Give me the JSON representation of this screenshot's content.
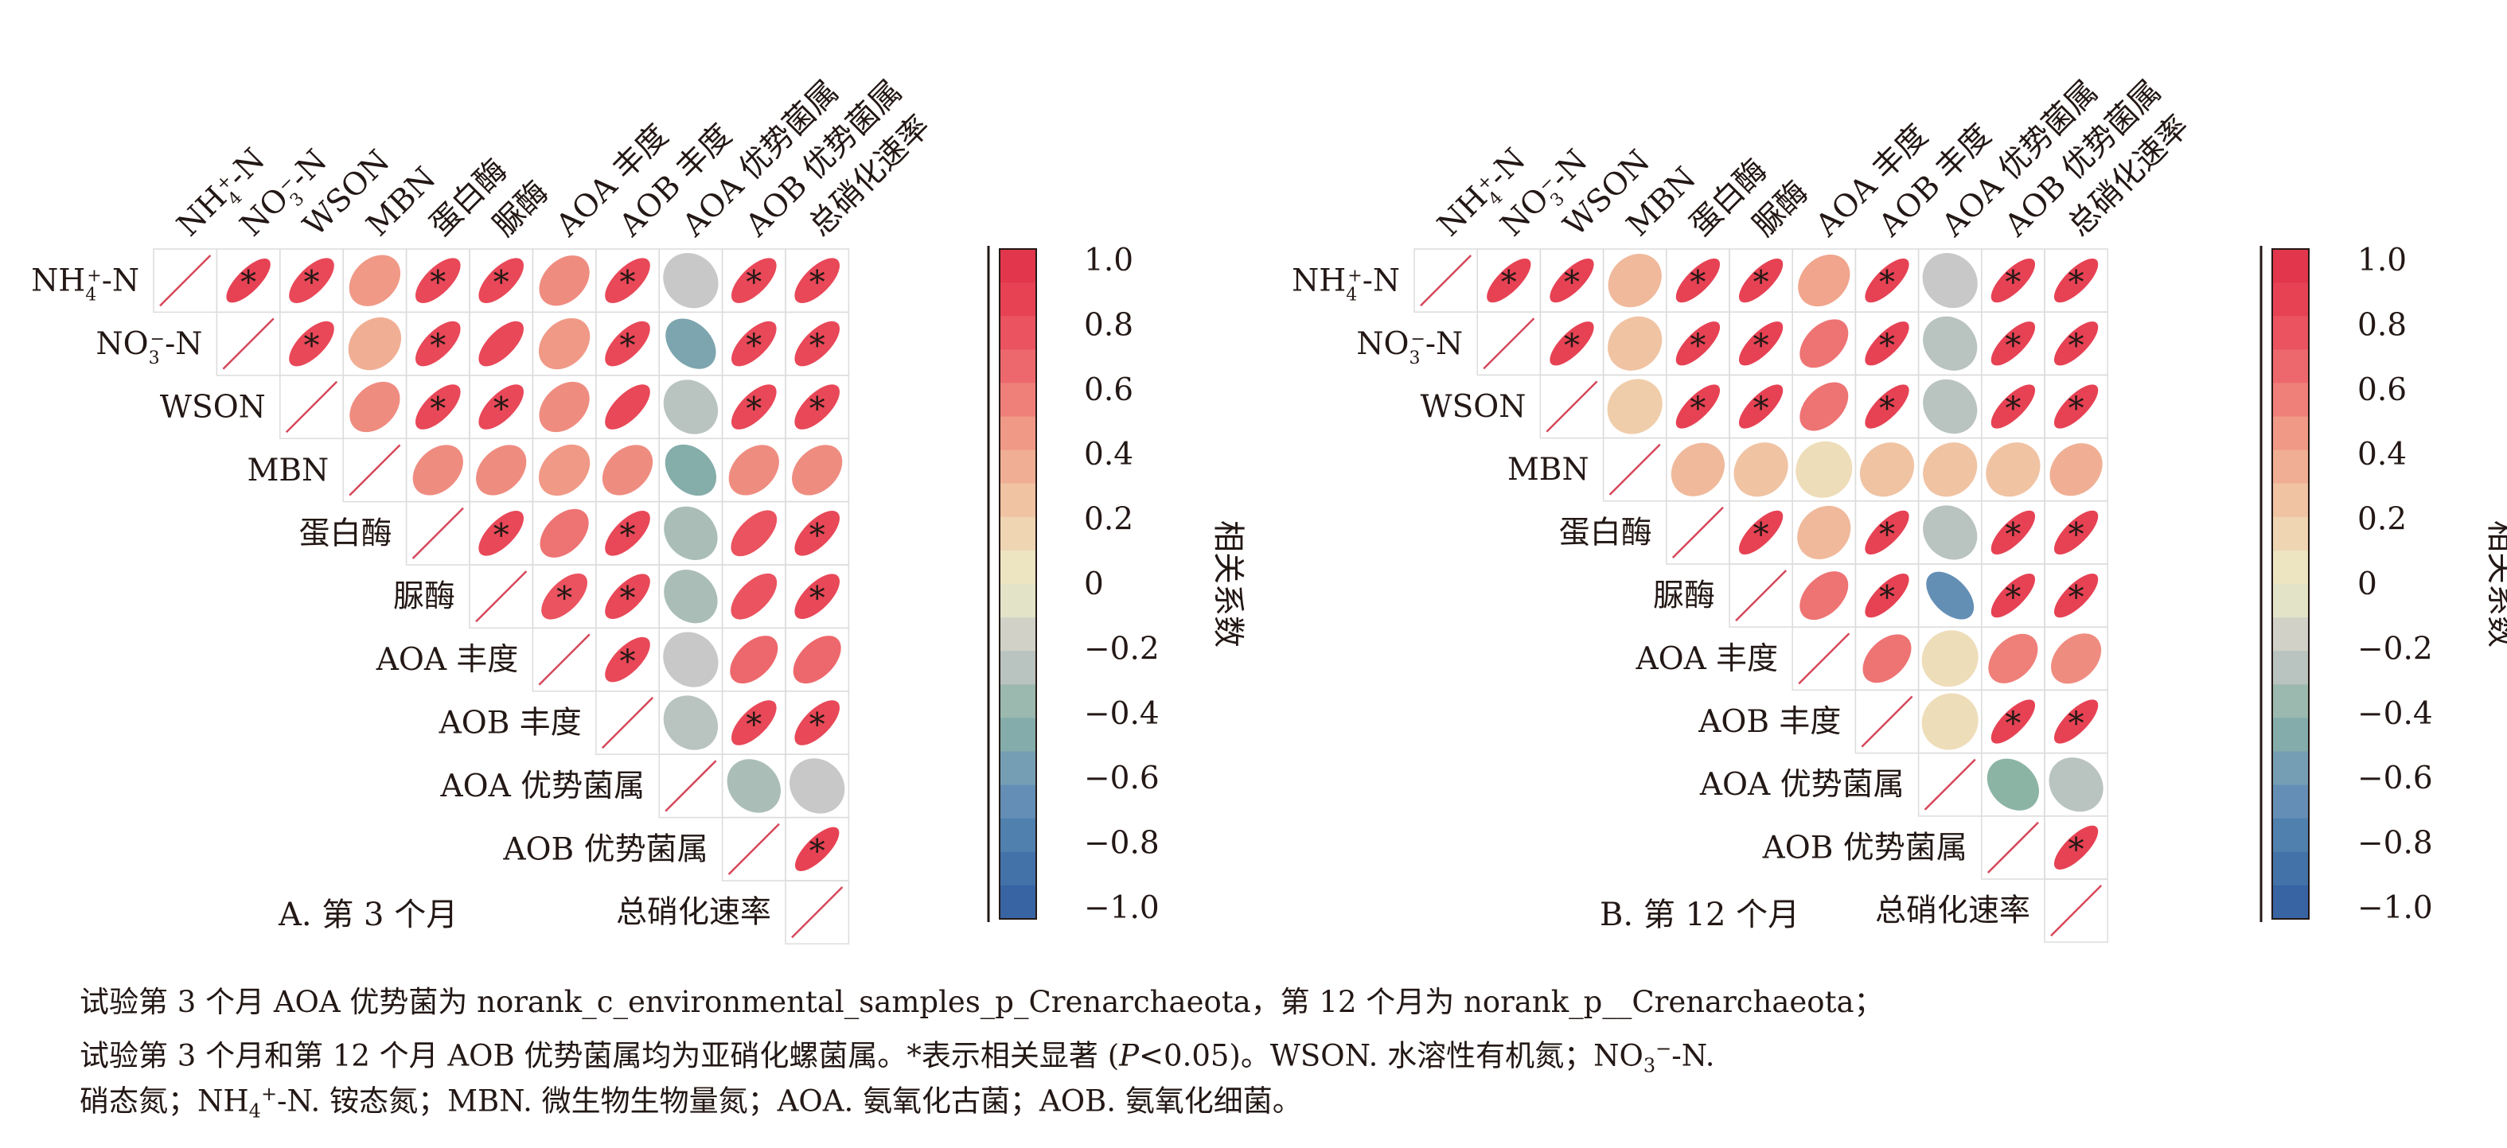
{
  "chart_data": [
    {
      "type": "heatmap",
      "panel_label": "A. 第 3 个月",
      "variables": [
        "NH4+-N",
        "NO3−-N",
        "WSON",
        "MBN",
        "蛋白酶",
        "脲酶",
        "AOA 丰度",
        "AOB 丰度",
        "AOA 优势菌属",
        "AOB 优势菌属",
        "总硝化速率"
      ],
      "matrix": [
        [
          1.0,
          0.85,
          0.8,
          0.45,
          0.8,
          0.8,
          0.5,
          0.8,
          -0.2,
          0.8,
          0.8
        ],
        [
          0.85,
          1.0,
          0.8,
          0.35,
          0.8,
          0.8,
          0.45,
          0.8,
          -0.5,
          0.8,
          0.8
        ],
        [
          0.8,
          0.8,
          1.0,
          0.5,
          0.8,
          0.8,
          0.5,
          0.8,
          -0.25,
          0.8,
          0.8
        ],
        [
          0.45,
          0.35,
          0.5,
          1.0,
          0.5,
          0.5,
          0.45,
          0.5,
          -0.45,
          0.5,
          0.5
        ],
        [
          0.8,
          0.8,
          0.8,
          0.5,
          1.0,
          0.8,
          0.6,
          0.8,
          -0.3,
          0.75,
          0.8
        ],
        [
          0.8,
          0.8,
          0.8,
          0.5,
          0.8,
          1.0,
          0.75,
          0.8,
          -0.3,
          0.75,
          0.8
        ],
        [
          0.5,
          0.45,
          0.5,
          0.45,
          0.6,
          0.75,
          1.0,
          0.8,
          -0.2,
          0.65,
          0.65
        ],
        [
          0.8,
          0.8,
          0.8,
          0.5,
          0.8,
          0.8,
          0.8,
          1.0,
          -0.25,
          0.8,
          0.8
        ],
        [
          -0.2,
          -0.5,
          -0.25,
          -0.45,
          -0.3,
          -0.3,
          -0.2,
          -0.25,
          1.0,
          -0.3,
          -0.2
        ],
        [
          0.8,
          0.8,
          0.8,
          0.5,
          0.75,
          0.75,
          0.65,
          0.8,
          -0.3,
          1.0,
          0.85
        ],
        [
          0.8,
          0.8,
          0.8,
          0.5,
          0.8,
          0.8,
          0.65,
          0.8,
          -0.2,
          0.85,
          1.0
        ]
      ],
      "significant_pairs": [
        [
          0,
          1
        ],
        [
          0,
          2
        ],
        [
          0,
          4
        ],
        [
          0,
          5
        ],
        [
          0,
          7
        ],
        [
          0,
          9
        ],
        [
          0,
          10
        ],
        [
          1,
          2
        ],
        [
          1,
          4
        ],
        [
          1,
          7
        ],
        [
          1,
          9
        ],
        [
          1,
          10
        ],
        [
          2,
          4
        ],
        [
          2,
          5
        ],
        [
          2,
          9
        ],
        [
          2,
          10
        ],
        [
          4,
          5
        ],
        [
          4,
          7
        ],
        [
          4,
          10
        ],
        [
          5,
          6
        ],
        [
          5,
          7
        ],
        [
          5,
          10
        ],
        [
          6,
          7
        ],
        [
          7,
          9
        ],
        [
          7,
          10
        ],
        [
          9,
          10
        ]
      ],
      "colorbar": {
        "label": "相关系数",
        "ticks": [
          "1.0",
          "0.8",
          "0.6",
          "0.4",
          "0.2",
          "0",
          "−0.2",
          "−0.4",
          "−0.6",
          "−0.8",
          "−1.0"
        ],
        "range": [
          -1,
          1
        ]
      },
      "significance_mark": "*"
    },
    {
      "type": "heatmap",
      "panel_label": "B. 第 12 个月",
      "variables": [
        "NH4+-N",
        "NO3−-N",
        "WSON",
        "MBN",
        "蛋白酶",
        "脲酶",
        "AOA 丰度",
        "AOB 丰度",
        "AOA 优势菌属",
        "AOB 优势菌属",
        "总硝化速率"
      ],
      "matrix": [
        [
          1.0,
          0.85,
          0.85,
          0.3,
          0.85,
          0.85,
          0.4,
          0.85,
          -0.2,
          0.85,
          0.85
        ],
        [
          0.85,
          1.0,
          0.85,
          0.25,
          0.85,
          0.85,
          0.6,
          0.85,
          -0.25,
          0.85,
          0.85
        ],
        [
          0.85,
          0.85,
          1.0,
          0.2,
          0.85,
          0.85,
          0.6,
          0.85,
          -0.25,
          0.85,
          0.85
        ],
        [
          0.3,
          0.25,
          0.2,
          1.0,
          0.3,
          0.25,
          0.1,
          0.25,
          0.25,
          0.25,
          0.35
        ],
        [
          0.85,
          0.85,
          0.85,
          0.3,
          1.0,
          0.85,
          0.3,
          0.85,
          -0.25,
          0.85,
          0.85
        ],
        [
          0.85,
          0.85,
          0.85,
          0.25,
          0.85,
          1.0,
          0.6,
          0.85,
          -0.65,
          0.85,
          0.85
        ],
        [
          0.4,
          0.6,
          0.6,
          0.1,
          0.3,
          0.6,
          1.0,
          0.6,
          0.1,
          0.55,
          0.5
        ],
        [
          0.85,
          0.85,
          0.85,
          0.25,
          0.85,
          0.85,
          0.6,
          1.0,
          0.1,
          0.85,
          0.85
        ],
        [
          -0.2,
          -0.25,
          -0.25,
          0.25,
          -0.25,
          -0.65,
          0.1,
          0.1,
          1.0,
          -0.4,
          -0.25
        ],
        [
          0.85,
          0.85,
          0.85,
          0.25,
          0.85,
          0.85,
          0.55,
          0.85,
          -0.4,
          1.0,
          0.85
        ],
        [
          0.85,
          0.85,
          0.85,
          0.35,
          0.85,
          0.85,
          0.5,
          0.85,
          -0.25,
          0.85,
          1.0
        ]
      ],
      "significant_pairs": [
        [
          0,
          1
        ],
        [
          0,
          2
        ],
        [
          0,
          4
        ],
        [
          0,
          5
        ],
        [
          0,
          7
        ],
        [
          0,
          9
        ],
        [
          0,
          10
        ],
        [
          1,
          2
        ],
        [
          1,
          4
        ],
        [
          1,
          5
        ],
        [
          1,
          7
        ],
        [
          1,
          9
        ],
        [
          1,
          10
        ],
        [
          2,
          4
        ],
        [
          2,
          5
        ],
        [
          2,
          7
        ],
        [
          2,
          9
        ],
        [
          2,
          10
        ],
        [
          4,
          5
        ],
        [
          4,
          7
        ],
        [
          4,
          9
        ],
        [
          4,
          10
        ],
        [
          5,
          7
        ],
        [
          5,
          9
        ],
        [
          5,
          10
        ],
        [
          7,
          9
        ],
        [
          7,
          10
        ],
        [
          9,
          10
        ]
      ],
      "colorbar": {
        "label": "相关系数",
        "ticks": [
          "1.0",
          "0.8",
          "0.6",
          "0.4",
          "0.2",
          "0",
          "−0.2",
          "−0.4",
          "−0.6",
          "−0.8",
          "−1.0"
        ],
        "range": [
          -1,
          1
        ]
      },
      "significance_mark": "*"
    }
  ],
  "caption": {
    "line1": "试验第 3 个月 AOA 优势菌为 norank_c_environmental_samples_p_Crenarchaeota，第 12 个月为 norank_p__Crenarchaeota；",
    "line2_a": "试验第 3 个月和第 12 个月 AOB 优势菌属均为亚硝化螺菌属。*表示相关显著 (",
    "line2_p": "P",
    "line2_b": "<0.05)。WSON. 水溶性有机氮；NO",
    "line2_c": "-N.",
    "line3_a": "硝态氮；NH",
    "line3_b": "-N. 铵态氮；MBN. 微生物生物量氮；AOA. 氨氧化古菌；AOB. 氨氧化细菌。",
    "sub_3": "3",
    "sup_minus": "−",
    "sub_4": "4",
    "sup_plus": "+"
  }
}
